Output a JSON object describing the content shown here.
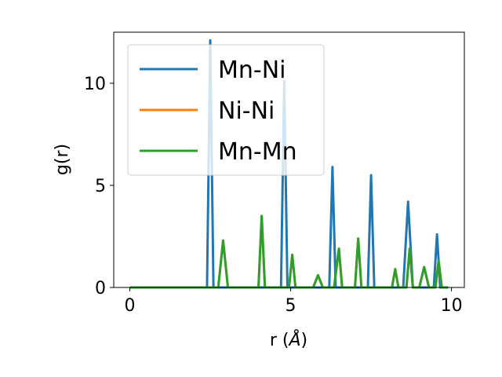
{
  "chart_data": {
    "type": "line",
    "xlabel": "r (",
    "xlabel_unit": "Å",
    "xlabel_close": ")",
    "ylabel": "g(r)",
    "xlim": [
      -0.5,
      10.4
    ],
    "ylim": [
      0,
      12.5
    ],
    "xticks": [
      0,
      5,
      10
    ],
    "yticks": [
      0,
      5,
      10
    ],
    "grid": false,
    "legend_position": "top-left",
    "series": [
      {
        "name": "Mn-Ni",
        "color": "#1f77b4",
        "x": [
          0,
          2.4,
          2.5,
          2.6,
          4.7,
          4.8,
          4.9,
          6.2,
          6.3,
          6.4,
          7.4,
          7.5,
          7.6,
          8.5,
          8.65,
          8.8,
          9.45,
          9.55,
          9.65,
          9.9
        ],
        "y": [
          0,
          0,
          12.1,
          0,
          0,
          10.1,
          0,
          0,
          5.9,
          0,
          0,
          5.5,
          0,
          0,
          4.2,
          0,
          0,
          2.6,
          0,
          0
        ]
      },
      {
        "name": "Ni-Ni",
        "color": "#ff7f0e",
        "x": [
          0,
          2.75,
          2.9,
          3.05,
          4.0,
          4.1,
          4.2,
          4.95,
          5.05,
          5.15,
          5.7,
          5.85,
          6.0,
          6.35,
          6.5,
          6.6,
          7.0,
          7.1,
          7.2,
          8.15,
          8.25,
          8.35,
          8.6,
          8.7,
          8.8,
          9.0,
          9.15,
          9.3,
          9.5,
          9.6,
          9.7,
          9.9
        ],
        "y": [
          0,
          0,
          2.3,
          0,
          0,
          3.5,
          0,
          0,
          1.6,
          0,
          0,
          0.6,
          0,
          0,
          1.9,
          0,
          0,
          2.4,
          0,
          0,
          0.9,
          0,
          0,
          1.9,
          0,
          0,
          1.0,
          0,
          0,
          1.3,
          0,
          0
        ]
      },
      {
        "name": "Mn-Mn",
        "color": "#2ca02c",
        "x": [
          0,
          2.75,
          2.9,
          3.05,
          4.0,
          4.1,
          4.2,
          4.95,
          5.05,
          5.15,
          5.7,
          5.85,
          6.0,
          6.35,
          6.5,
          6.6,
          7.0,
          7.1,
          7.2,
          8.15,
          8.25,
          8.35,
          8.6,
          8.7,
          8.8,
          9.0,
          9.15,
          9.3,
          9.5,
          9.6,
          9.7,
          9.9
        ],
        "y": [
          0,
          0,
          2.3,
          0,
          0,
          3.5,
          0,
          0,
          1.6,
          0,
          0,
          0.6,
          0,
          0,
          1.9,
          0,
          0,
          2.4,
          0,
          0,
          0.9,
          0,
          0,
          1.9,
          0,
          0,
          1.0,
          0,
          0,
          1.3,
          0,
          0
        ]
      }
    ]
  }
}
